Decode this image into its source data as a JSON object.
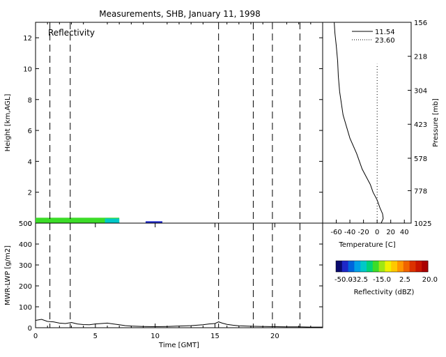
{
  "figure": {
    "title": "Measurements, SHB, January 11, 1998"
  },
  "chart_data": [
    {
      "id": "reflectivity_panel",
      "type": "heatmap",
      "panel_label": "Reflectivity",
      "xlabel": "",
      "ylabel": "Height [km,AGL]",
      "xlim": [
        0,
        24
      ],
      "ylim": [
        0,
        13
      ],
      "yticks": [
        0,
        2,
        4,
        6,
        8,
        10,
        12
      ],
      "event_lines_x": [
        1.2,
        2.9,
        15.3,
        18.2,
        19.8,
        22.1
      ],
      "segments": [
        {
          "x_start": 0.0,
          "x_end": 7.0,
          "top_km": 0.35,
          "dbz": -22
        },
        {
          "x_start": 5.8,
          "x_end": 7.0,
          "top_km": 0.3,
          "dbz": -30
        },
        {
          "x_start": 9.2,
          "x_end": 10.6,
          "top_km": 0.12,
          "dbz": -45
        }
      ]
    },
    {
      "id": "lwp_panel",
      "type": "line",
      "xlabel": "Time [GMT]",
      "ylabel": "MWR-LWP [g/m2]",
      "xlim": [
        0,
        24
      ],
      "ylim": [
        0,
        500
      ],
      "xticks": [
        0,
        5,
        10,
        15,
        20
      ],
      "yticks": [
        0,
        100,
        200,
        300,
        400,
        500
      ],
      "event_lines_x": [
        1.2,
        2.9,
        15.3,
        18.2,
        19.8,
        22.1
      ],
      "series": [
        {
          "x": [
            0,
            0.5,
            1.0,
            1.5,
            2.0,
            2.5,
            3.0,
            3.5,
            4.0,
            4.5,
            5.0,
            5.5,
            6.0,
            6.5,
            7.0,
            7.5,
            8.0,
            9.0,
            10.0,
            11.0,
            12.0,
            13.0,
            14.0,
            14.5,
            15.0,
            15.3,
            15.6,
            16.0,
            16.5,
            17.0,
            18.0,
            19.0,
            20.0,
            21.0,
            22.0,
            23.0,
            24.0
          ],
          "y": [
            35,
            40,
            30,
            28,
            22,
            20,
            25,
            18,
            15,
            14,
            18,
            20,
            22,
            18,
            14,
            10,
            8,
            6,
            5,
            6,
            8,
            10,
            14,
            18,
            20,
            28,
            22,
            16,
            12,
            9,
            7,
            6,
            5,
            4,
            4,
            3,
            3
          ]
        }
      ]
    },
    {
      "id": "sounding_panel",
      "type": "line",
      "xlabel": "Temperature [C]",
      "ylabel": "Pressure [mb]",
      "xlim": [
        -80,
        50
      ],
      "ylim_km": [
        0,
        13
      ],
      "xticks": [
        -60,
        -40,
        -20,
        0,
        20,
        40
      ],
      "pressure_ticks": [
        {
          "label": "156",
          "km": 13.0
        },
        {
          "label": "218",
          "km": 10.8
        },
        {
          "label": "304",
          "km": 8.6
        },
        {
          "label": "423",
          "km": 6.4
        },
        {
          "label": "578",
          "km": 4.2
        },
        {
          "label": "778",
          "km": 2.1
        },
        {
          "label": "1025",
          "km": 0.0
        }
      ],
      "series": [
        {
          "name": "11.54",
          "style": "solid",
          "temp_c": [
            6,
            9,
            8,
            4,
            0,
            -6,
            -10,
            -16,
            -22,
            -30,
            -40,
            -50,
            -55,
            -57,
            -58,
            -60,
            -62,
            -63
          ],
          "km": [
            0,
            0.3,
            0.6,
            1.0,
            1.5,
            2.0,
            2.5,
            3.0,
            3.5,
            4.5,
            5.5,
            7.0,
            8.5,
            9.5,
            10.5,
            11.5,
            12.3,
            13.0
          ]
        },
        {
          "name": "23.60",
          "style": "dotted",
          "temp_c": [
            0,
            0
          ],
          "km": [
            0,
            10.3
          ]
        }
      ]
    },
    {
      "id": "reflectivity_colorbar",
      "type": "heatmap",
      "title": "Reflectivity (dBZ)",
      "range": [
        -50,
        20
      ],
      "tick_labels": [
        "-50.0",
        "-32.5",
        "-15.0",
        "2.5",
        "20.0"
      ],
      "colors": [
        "#0a0a6e",
        "#1e28c8",
        "#0064dc",
        "#00a0e6",
        "#00c8c8",
        "#00d278",
        "#3cdc28",
        "#a0e614",
        "#f0f000",
        "#ffc800",
        "#ff9600",
        "#f06400",
        "#dc3200",
        "#c81400",
        "#aa0000"
      ]
    }
  ]
}
